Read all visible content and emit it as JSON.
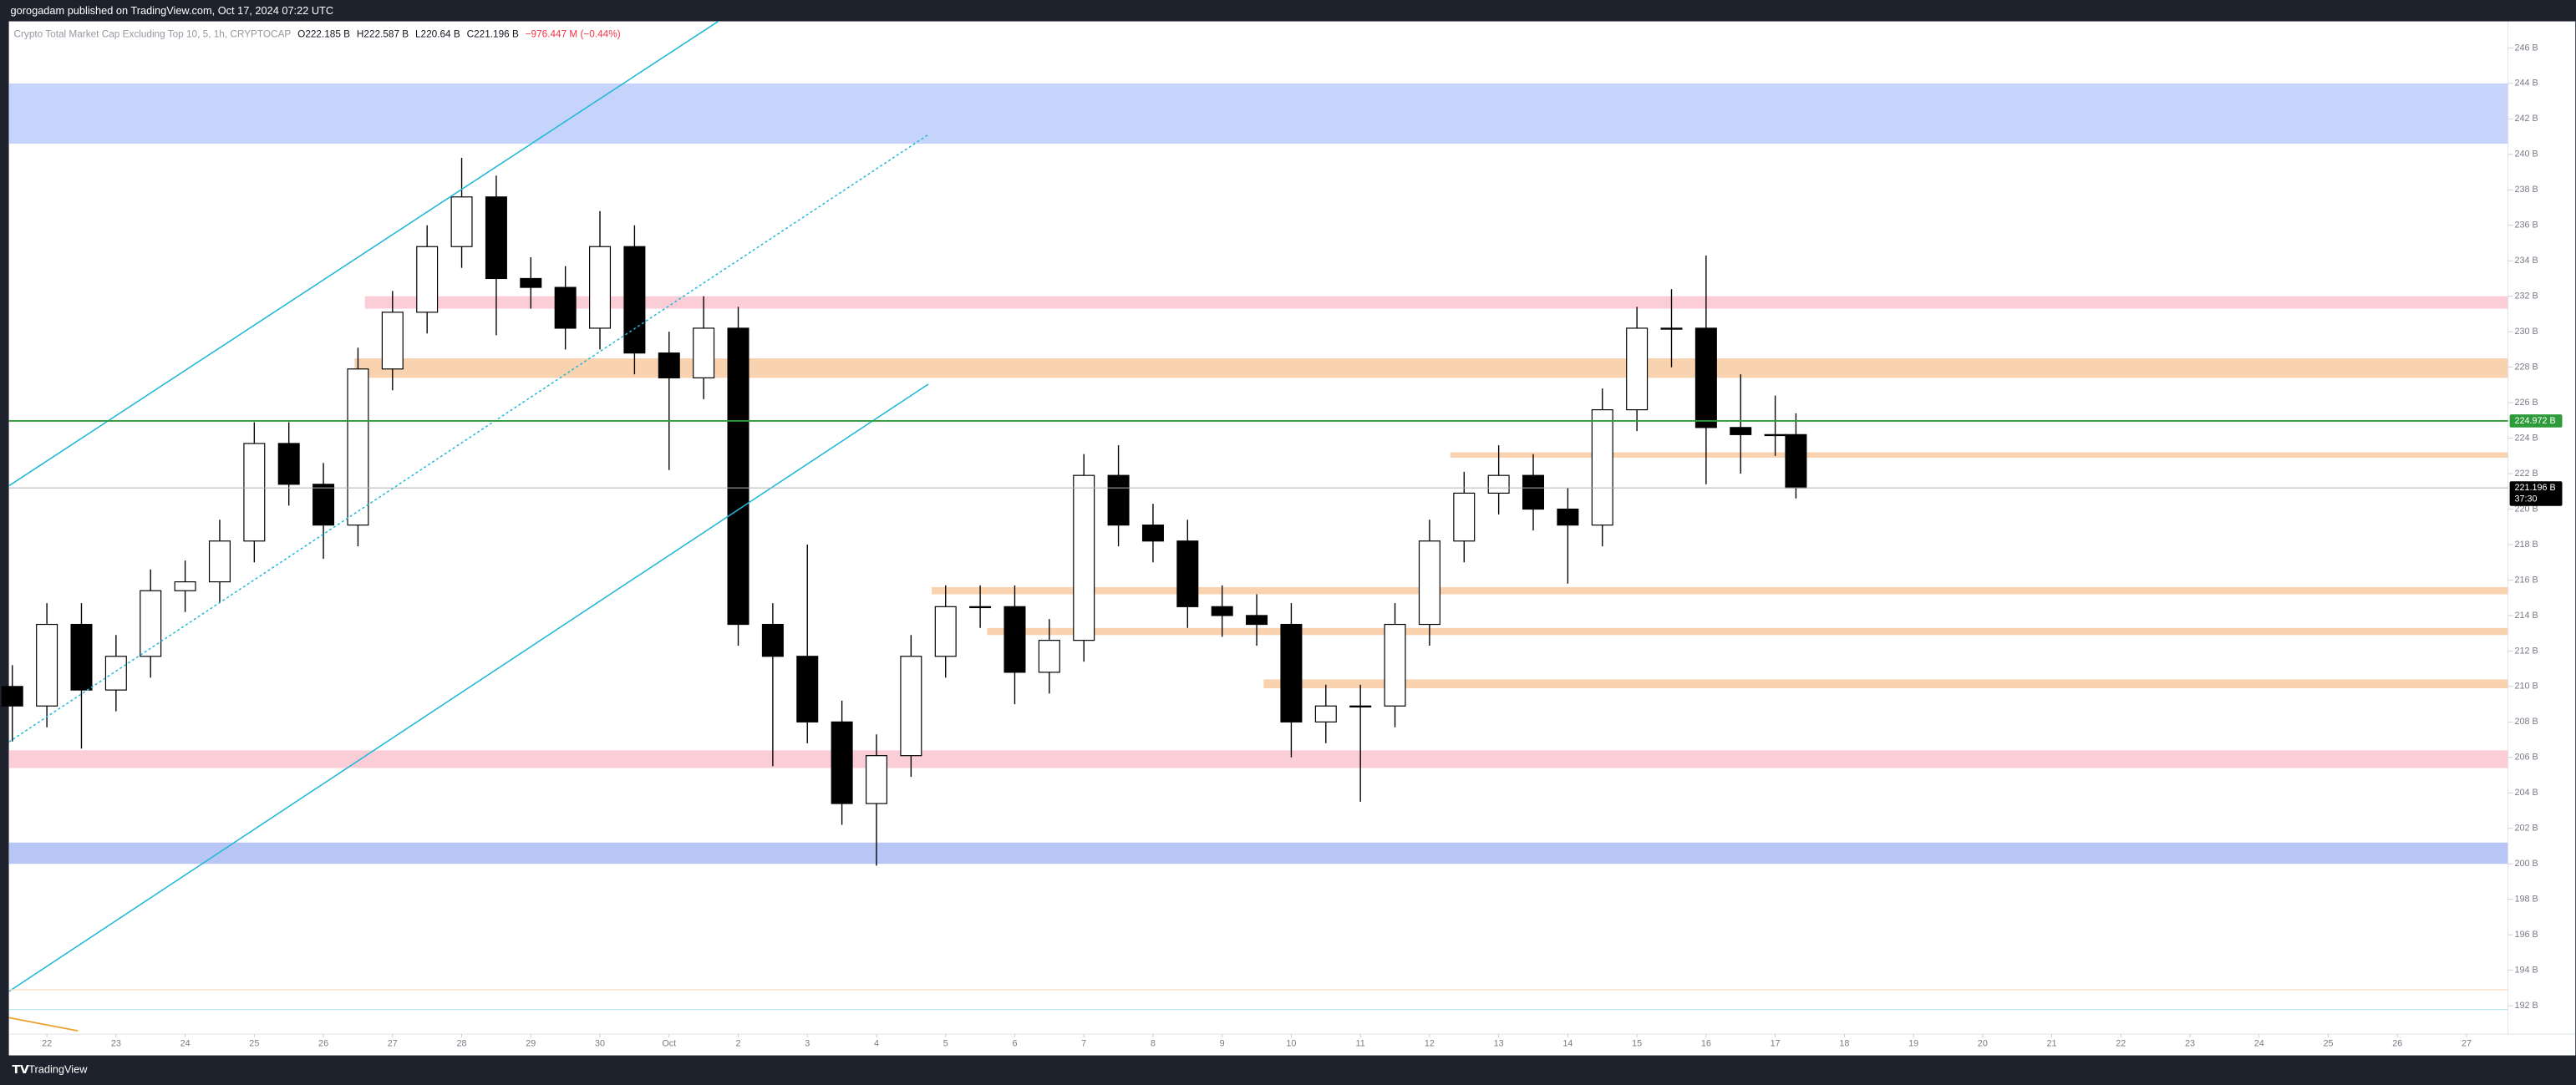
{
  "header": {
    "title": "gorogadam published on TradingView.com, Oct 17, 2024 07:22 UTC"
  },
  "footer": {
    "brand": "TradingView"
  },
  "legend": {
    "symbol": "Crypto Total Market Cap Excluding Top 10, 5, 1h, CRYPTOCAP",
    "items": [
      "O222.185 B",
      "H222.587 B",
      "L220.64 B",
      "C221.196 B",
      "−976.447 M (−0.44%)"
    ]
  },
  "chart_data": {
    "type": "candlestick",
    "x": [
      -0.5,
      0,
      0.5,
      1,
      1.5,
      2,
      2.5,
      3,
      3.5,
      4,
      4.5,
      5,
      5.5,
      6,
      6.5,
      7,
      7.5,
      8,
      8.5,
      9,
      9.5,
      10,
      10.5,
      11,
      11.5,
      12,
      12.5,
      13,
      13.5,
      14,
      14.5,
      15,
      15.5,
      16,
      16.5,
      17,
      17.5,
      18,
      18.5,
      19,
      19.5,
      20,
      20.5,
      21,
      21.5,
      22,
      22.5,
      23,
      23.5,
      24,
      24.5,
      25,
      25.3
    ],
    "open": [
      210.0,
      208.9,
      213.5,
      209.8,
      211.7,
      215.4,
      215.9,
      218.2,
      223.7,
      221.4,
      219.1,
      227.9,
      231.1,
      234.8,
      237.6,
      233.0,
      232.5,
      230.2,
      234.8,
      228.8,
      227.4,
      230.2,
      213.5,
      211.7,
      208.0,
      203.4,
      206.1,
      211.7,
      214.5,
      214.5,
      210.8,
      212.6,
      221.9,
      219.1,
      218.2,
      214.5,
      214.0,
      213.5,
      208.0,
      208.9,
      208.9,
      213.5,
      218.2,
      220.9,
      221.9,
      220.0,
      219.1,
      225.6,
      230.2,
      230.2,
      224.6,
      224.2,
      224.2
    ],
    "high": [
      211.2,
      214.7,
      214.7,
      212.9,
      216.6,
      217.1,
      219.4,
      224.9,
      224.9,
      222.6,
      229.1,
      232.3,
      236.0,
      239.8,
      238.8,
      234.2,
      233.7,
      236.8,
      236.0,
      230.0,
      232.0,
      231.4,
      214.7,
      218.0,
      209.2,
      207.3,
      212.9,
      215.7,
      215.7,
      215.7,
      213.8,
      223.1,
      223.6,
      220.3,
      219.4,
      215.7,
      215.2,
      214.7,
      210.1,
      210.1,
      214.7,
      219.4,
      222.1,
      223.6,
      223.1,
      221.2,
      226.8,
      231.4,
      232.4,
      234.3,
      227.6,
      226.4,
      225.4
    ],
    "low": [
      206.9,
      207.7,
      206.5,
      208.6,
      210.5,
      214.2,
      214.7,
      217.0,
      220.2,
      217.2,
      217.9,
      226.7,
      229.9,
      233.6,
      229.8,
      231.3,
      229.0,
      229.0,
      227.6,
      222.2,
      226.2,
      212.3,
      205.5,
      206.8,
      202.2,
      199.9,
      204.9,
      210.5,
      213.3,
      209.0,
      209.6,
      211.4,
      217.9,
      217.0,
      213.3,
      212.8,
      212.3,
      206.0,
      206.8,
      203.5,
      207.7,
      212.3,
      217.0,
      219.7,
      218.8,
      215.8,
      217.9,
      224.4,
      228.0,
      221.4,
      222.0,
      223.0,
      220.6
    ],
    "close": [
      208.9,
      213.5,
      209.8,
      211.7,
      215.4,
      215.9,
      218.2,
      223.7,
      221.4,
      219.1,
      227.9,
      231.1,
      234.8,
      237.6,
      233.0,
      232.5,
      230.2,
      234.8,
      228.8,
      227.4,
      230.2,
      213.5,
      211.7,
      208.0,
      203.4,
      206.1,
      211.7,
      214.5,
      214.5,
      210.8,
      212.6,
      221.9,
      219.1,
      218.2,
      214.5,
      214.0,
      213.5,
      208.0,
      208.9,
      208.9,
      213.5,
      218.2,
      220.9,
      221.9,
      220.0,
      219.1,
      225.6,
      230.2,
      230.2,
      224.6,
      224.2,
      224.2,
      221.196
    ],
    "up_color": "#ffffff",
    "down_color": "#000000",
    "wick_color": "#000000",
    "xlim": [
      -0.55,
      35.6
    ],
    "xticks": [
      {
        "value": 0,
        "label": "22"
      },
      {
        "value": 1,
        "label": "23"
      },
      {
        "value": 2,
        "label": "24"
      },
      {
        "value": 3,
        "label": "25"
      },
      {
        "value": 4,
        "label": "26"
      },
      {
        "value": 5,
        "label": "27"
      },
      {
        "value": 6,
        "label": "28"
      },
      {
        "value": 7,
        "label": "29"
      },
      {
        "value": 8,
        "label": "30"
      },
      {
        "value": 9,
        "label": "Oct"
      },
      {
        "value": 10,
        "label": "2"
      },
      {
        "value": 11,
        "label": "3"
      },
      {
        "value": 12,
        "label": "4"
      },
      {
        "value": 13,
        "label": "5"
      },
      {
        "value": 14,
        "label": "6"
      },
      {
        "value": 15,
        "label": "7"
      },
      {
        "value": 16,
        "label": "8"
      },
      {
        "value": 17,
        "label": "9"
      },
      {
        "value": 18,
        "label": "10"
      },
      {
        "value": 19,
        "label": "11"
      },
      {
        "value": 20,
        "label": "12"
      },
      {
        "value": 21,
        "label": "13"
      },
      {
        "value": 22,
        "label": "14"
      },
      {
        "value": 23,
        "label": "15"
      },
      {
        "value": 24,
        "label": "16"
      },
      {
        "value": 25,
        "label": "17"
      },
      {
        "value": 26,
        "label": "18"
      },
      {
        "value": 27,
        "label": "19"
      },
      {
        "value": 28,
        "label": "20"
      },
      {
        "value": 29,
        "label": "21"
      },
      {
        "value": 30,
        "label": "22"
      },
      {
        "value": 31,
        "label": "23"
      },
      {
        "value": 32,
        "label": "24"
      },
      {
        "value": 33,
        "label": "25"
      },
      {
        "value": 34,
        "label": "26"
      },
      {
        "value": 35,
        "label": "27"
      }
    ],
    "ylim": [
      190.4,
      247.5
    ],
    "yticks": [
      {
        "value": 246,
        "label": "246 B"
      },
      {
        "value": 244,
        "label": "244 B"
      },
      {
        "value": 242,
        "label": "242 B"
      },
      {
        "value": 240,
        "label": "240 B"
      },
      {
        "value": 238,
        "label": "238 B"
      },
      {
        "value": 236,
        "label": "236 B"
      },
      {
        "value": 234,
        "label": "234 B"
      },
      {
        "value": 232,
        "label": "232 B"
      },
      {
        "value": 230,
        "label": "230 B"
      },
      {
        "value": 228,
        "label": "228 B"
      },
      {
        "value": 226,
        "label": "226 B"
      },
      {
        "value": 224,
        "label": "224 B"
      },
      {
        "value": 222,
        "label": "222 B"
      },
      {
        "value": 220,
        "label": "220 B"
      },
      {
        "value": 218,
        "label": "218 B"
      },
      {
        "value": 216,
        "label": "216 B"
      },
      {
        "value": 214,
        "label": "214 B"
      },
      {
        "value": 212,
        "label": "212 B"
      },
      {
        "value": 210,
        "label": "210 B"
      },
      {
        "value": 208,
        "label": "208 B"
      },
      {
        "value": 206,
        "label": "206 B"
      },
      {
        "value": 204,
        "label": "204 B"
      },
      {
        "value": 202,
        "label": "202 B"
      },
      {
        "value": 200,
        "label": "200 B"
      },
      {
        "value": 198,
        "label": "198 B"
      },
      {
        "value": 196,
        "label": "196 B"
      },
      {
        "value": 194,
        "label": "194 B"
      },
      {
        "value": 192,
        "label": "192 B"
      }
    ],
    "zones": [
      {
        "low": 240.6,
        "high": 244.0,
        "color": "#c6d3fb"
      },
      {
        "low": 231.3,
        "high": 232.0,
        "color": "#fbcdd6",
        "x_start": 4.6
      },
      {
        "low": 227.4,
        "high": 228.5,
        "color": "#f9d2b0",
        "x_start": 4.45
      },
      {
        "low": 222.9,
        "high": 223.2,
        "color": "#f9d2b0",
        "x_start": 20.3
      },
      {
        "low": 215.2,
        "high": 215.6,
        "color": "#f9d2b0",
        "x_start": 12.8
      },
      {
        "low": 212.9,
        "high": 213.3,
        "color": "#f9d2b0",
        "x_start": 13.6
      },
      {
        "low": 209.9,
        "high": 210.4,
        "color": "#f9d2b0",
        "x_start": 17.6
      },
      {
        "low": 205.4,
        "high": 206.4,
        "color": "#fbcdd6"
      },
      {
        "low": 200.0,
        "high": 201.2,
        "color": "#b8c6f5"
      }
    ],
    "hlines": [
      {
        "value": 224.972,
        "label": "224.972 B",
        "color": "#2e9b3a"
      },
      {
        "value": 221.196,
        "label": "221.196 B",
        "color": "#b0b0b0",
        "countdown": "37:30"
      }
    ]
  }
}
